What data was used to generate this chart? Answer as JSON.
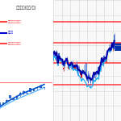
{
  "title_left": "レベル】(ドル/円)",
  "legend_items": [
    "上値目標レベル",
    "現在値",
    "下値目標レベル"
  ],
  "legend_colors": [
    "#ff4444",
    "#0000cc",
    "#ff4444"
  ],
  "bg_color": "#ffffff",
  "grid_color": "#cccccc",
  "red_line_levels": [
    0.82,
    0.65,
    0.48,
    0.3
  ],
  "right_panel_bg": "#f8f8f8",
  "candle_blue": "#3366cc",
  "candle_red": "#cc0000",
  "line_blue_dark": "#0000aa",
  "line_cyan": "#00aaff"
}
